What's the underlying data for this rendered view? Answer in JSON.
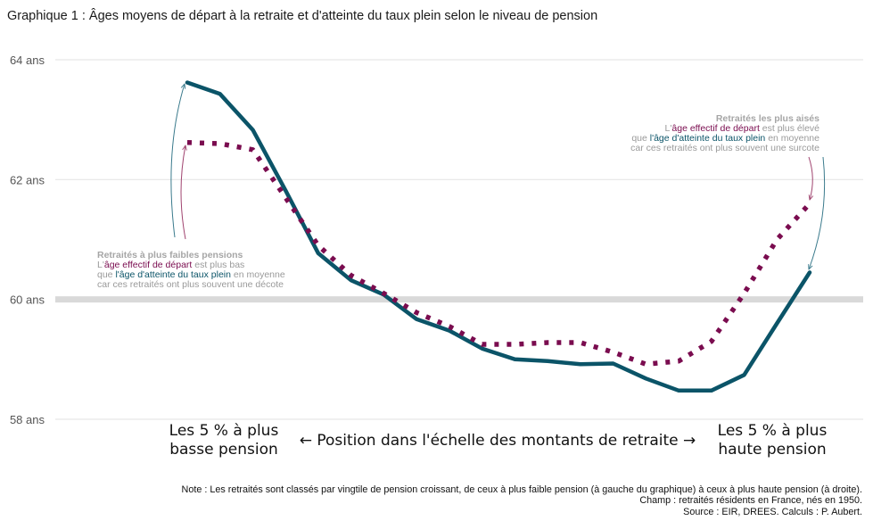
{
  "title": "Graphique 1 : Âges moyens de départ à la retraite et d'atteinte du taux plein selon le niveau de pension",
  "notes": [
    "Note : Les retraités sont classés par vingtile de pension croissant, de ceux à plus faible pension (à gauche du graphique) à ceux à plus haute pension (à droite).",
    "Champ : retraités résidents en France, nés en 1950.",
    "Source : EIR, DREES. Calculs : P. Aubert."
  ],
  "colors": {
    "depart": "#7a0c4f",
    "taux_plein": "#0b5468",
    "reference_band": "#d9d9d9",
    "grid": "#e6e6e6",
    "annotation_grey": "#9a9a9a"
  },
  "chart_data": {
    "type": "line",
    "x": [
      1,
      2,
      3,
      4,
      5,
      6,
      7,
      8,
      9,
      10,
      11,
      12,
      13,
      14,
      15,
      16,
      17,
      18,
      19,
      20
    ],
    "xlim": [
      1,
      20
    ],
    "ylim": [
      58,
      64
    ],
    "yticks": [
      58,
      60,
      62,
      64
    ],
    "ytick_labels": [
      "58 ans",
      "60 ans",
      "62 ans",
      "64 ans"
    ],
    "reference_line": 60,
    "grid": true,
    "series": [
      {
        "key": "taux_plein",
        "style": "solid",
        "values": [
          63.62,
          63.43,
          62.83,
          61.82,
          60.77,
          60.32,
          60.08,
          59.67,
          59.48,
          59.18,
          59.0,
          58.97,
          58.92,
          58.93,
          58.68,
          58.48,
          58.48,
          58.74,
          59.6,
          60.45
        ]
      },
      {
        "key": "depart",
        "style": "dotted",
        "values": [
          62.62,
          62.6,
          62.5,
          61.7,
          60.9,
          60.4,
          60.1,
          59.78,
          59.55,
          59.25,
          59.25,
          59.28,
          59.28,
          59.12,
          58.92,
          58.97,
          59.3,
          60.1,
          61.0,
          61.6
        ]
      }
    ],
    "xlabel_center": "← Position dans l'échelle des montants de retraite →",
    "xlabel_left": [
      "Les 5 % à plus",
      "basse pension"
    ],
    "xlabel_right": [
      "Les 5 % à plus",
      "haute pension"
    ],
    "annotation_left": {
      "heading": "Retraités à plus faibles pensions",
      "l2a": "L'",
      "l2b": "âge effectif de départ",
      "l2c": " est plus bas",
      "l3a": "que ",
      "l3b": "l'âge d'atteinte du taux plein",
      "l3c": " en moyenne",
      "l4": "car ces retraités ont plus souvent une décote"
    },
    "annotation_right": {
      "heading": "Retraités les plus aisés",
      "l2a": "L'",
      "l2b": "âge effectif de départ",
      "l2c": " est plus élevé",
      "l3a": "que ",
      "l3b": "l'âge d'atteinte du taux plein",
      "l3c": " en moyenne",
      "l4": "car ces retraités ont plus souvent une surcote"
    }
  }
}
